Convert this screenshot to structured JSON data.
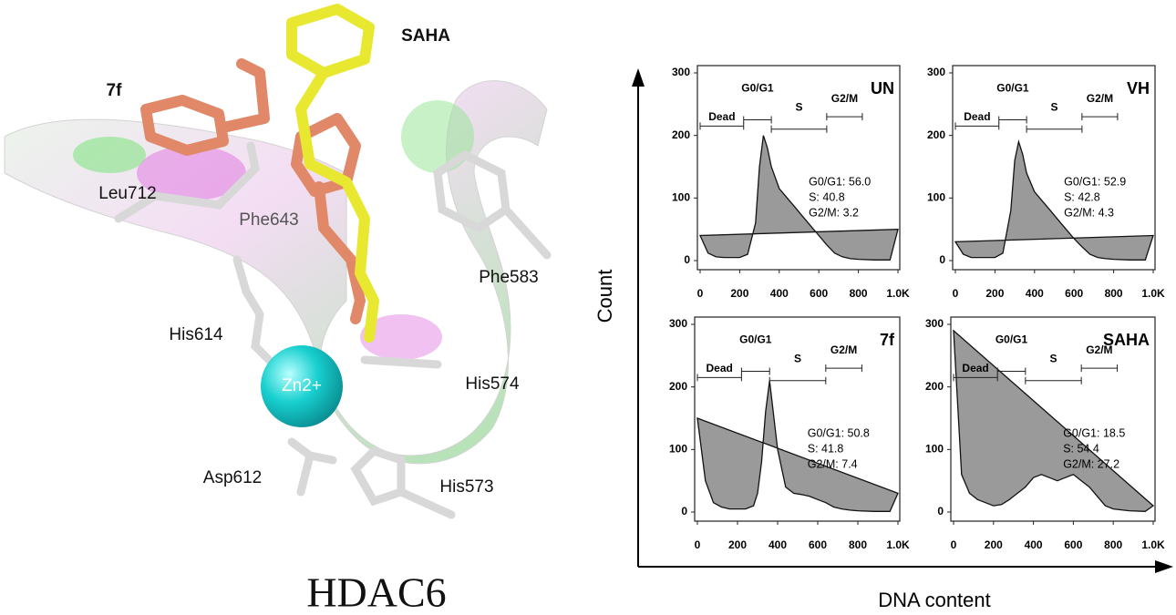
{
  "molecule_panel": {
    "labels": {
      "saha": "SAHA",
      "compound": "7f",
      "leu712": "Leu712",
      "phe643": "Phe643",
      "phe583": "Phe583",
      "his614": "His614",
      "zinc": "Zn2+",
      "his574": "His574",
      "asp612": "Asp612",
      "his573": "His573"
    },
    "title": "HDAC6"
  },
  "axes": {
    "y_label": "Count",
    "x_label": "DNA content"
  },
  "chart_data": [
    {
      "type": "area",
      "panel_label": "UN",
      "color": "#9a9a9a",
      "x": [
        0,
        40,
        80,
        120,
        160,
        200,
        240,
        280,
        300,
        320,
        340,
        360,
        400,
        440,
        480,
        520,
        560,
        600,
        640,
        680,
        720,
        760,
        800,
        880,
        960,
        1000
      ],
      "values": [
        40,
        12,
        6,
        5,
        5,
        5,
        10,
        60,
        150,
        200,
        180,
        150,
        115,
        100,
        85,
        70,
        55,
        40,
        25,
        12,
        6,
        3,
        2,
        1,
        1,
        50
      ],
      "xlim": [
        0,
        1000
      ],
      "ylim": [
        0,
        300
      ],
      "xticks": [
        0,
        200,
        400,
        600,
        800,
        {
          "value": 1000,
          "label": "1.0K"
        }
      ],
      "yticks": [
        0,
        100,
        200,
        300
      ],
      "gates": [
        {
          "label": "Dead",
          "range": [
            0,
            220
          ],
          "level": 215
        },
        {
          "label": "G0/G1",
          "range": [
            220,
            360
          ],
          "level": 225
        },
        {
          "label": "S",
          "range": [
            360,
            640
          ],
          "level": 210
        },
        {
          "label": "G2/M",
          "range": [
            640,
            820
          ],
          "level": 230
        }
      ],
      "stats": [
        "G0/G1: 56.0",
        "S: 40.8",
        "G2/M: 3.2"
      ]
    },
    {
      "type": "area",
      "panel_label": "VH",
      "color": "#9a9a9a",
      "x": [
        0,
        40,
        80,
        120,
        160,
        200,
        240,
        280,
        300,
        320,
        340,
        360,
        400,
        440,
        480,
        520,
        560,
        600,
        640,
        680,
        720,
        760,
        800,
        880,
        960,
        1000
      ],
      "values": [
        30,
        10,
        5,
        5,
        5,
        5,
        12,
        80,
        160,
        190,
        170,
        140,
        110,
        95,
        80,
        65,
        50,
        35,
        22,
        10,
        5,
        3,
        2,
        1,
        1,
        40
      ],
      "xlim": [
        0,
        1000
      ],
      "ylim": [
        0,
        300
      ],
      "xticks": [
        0,
        200,
        400,
        600,
        800,
        {
          "value": 1000,
          "label": "1.0K"
        }
      ],
      "yticks": [
        0,
        100,
        200,
        300
      ],
      "gates": [
        {
          "label": "Dead",
          "range": [
            0,
            220
          ],
          "level": 215
        },
        {
          "label": "G0/G1",
          "range": [
            220,
            360
          ],
          "level": 225
        },
        {
          "label": "S",
          "range": [
            360,
            640
          ],
          "level": 210
        },
        {
          "label": "G2/M",
          "range": [
            640,
            820
          ],
          "level": 230
        }
      ],
      "stats": [
        "G0/G1: 52.9",
        "S: 42.8",
        "G2/M: 4.3"
      ]
    },
    {
      "type": "area",
      "panel_label": "7f",
      "color": "#9a9a9a",
      "x": [
        0,
        40,
        80,
        120,
        160,
        200,
        240,
        280,
        300,
        320,
        340,
        360,
        400,
        440,
        480,
        520,
        560,
        600,
        640,
        680,
        720,
        760,
        800,
        880,
        960,
        1000
      ],
      "values": [
        150,
        50,
        15,
        8,
        5,
        5,
        5,
        10,
        30,
        80,
        160,
        210,
        100,
        40,
        30,
        28,
        25,
        20,
        15,
        8,
        5,
        3,
        2,
        1,
        1,
        30
      ],
      "xlim": [
        0,
        1000
      ],
      "ylim": [
        0,
        300
      ],
      "xticks": [
        0,
        200,
        400,
        600,
        800,
        {
          "value": 1000,
          "label": "1.0K"
        }
      ],
      "yticks": [
        0,
        100,
        200,
        300
      ],
      "gates": [
        {
          "label": "Dead",
          "range": [
            0,
            220
          ],
          "level": 215
        },
        {
          "label": "G0/G1",
          "range": [
            220,
            360
          ],
          "level": 225
        },
        {
          "label": "S",
          "range": [
            360,
            640
          ],
          "level": 210
        },
        {
          "label": "G2/M",
          "range": [
            640,
            820
          ],
          "level": 230
        }
      ],
      "stats": [
        "G0/G1: 50.8",
        "S: 41.8",
        "G2/M: 7.4"
      ]
    },
    {
      "type": "area",
      "panel_label": "SAHA",
      "color": "#9a9a9a",
      "x": [
        0,
        40,
        80,
        120,
        160,
        200,
        240,
        280,
        300,
        320,
        340,
        360,
        400,
        440,
        480,
        520,
        560,
        600,
        640,
        680,
        720,
        760,
        800,
        880,
        960,
        1000
      ],
      "values": [
        290,
        60,
        30,
        20,
        15,
        10,
        12,
        20,
        25,
        30,
        35,
        40,
        55,
        60,
        55,
        50,
        55,
        60,
        50,
        40,
        25,
        10,
        5,
        2,
        1,
        10
      ],
      "xlim": [
        0,
        1000
      ],
      "ylim": [
        0,
        300
      ],
      "xticks": [
        0,
        200,
        400,
        600,
        800,
        {
          "value": 1000,
          "label": "1.0K"
        }
      ],
      "yticks": [
        0,
        100,
        200,
        300
      ],
      "gates": [
        {
          "label": "Dead",
          "range": [
            0,
            220
          ],
          "level": 215
        },
        {
          "label": "G0/G1",
          "range": [
            220,
            360
          ],
          "level": 225
        },
        {
          "label": "S",
          "range": [
            360,
            640
          ],
          "level": 210
        },
        {
          "label": "G2/M",
          "range": [
            640,
            820
          ],
          "level": 230
        }
      ],
      "stats": [
        "G0/G1: 18.5",
        "S: 54.4",
        "G2/M: 27.2"
      ]
    }
  ]
}
